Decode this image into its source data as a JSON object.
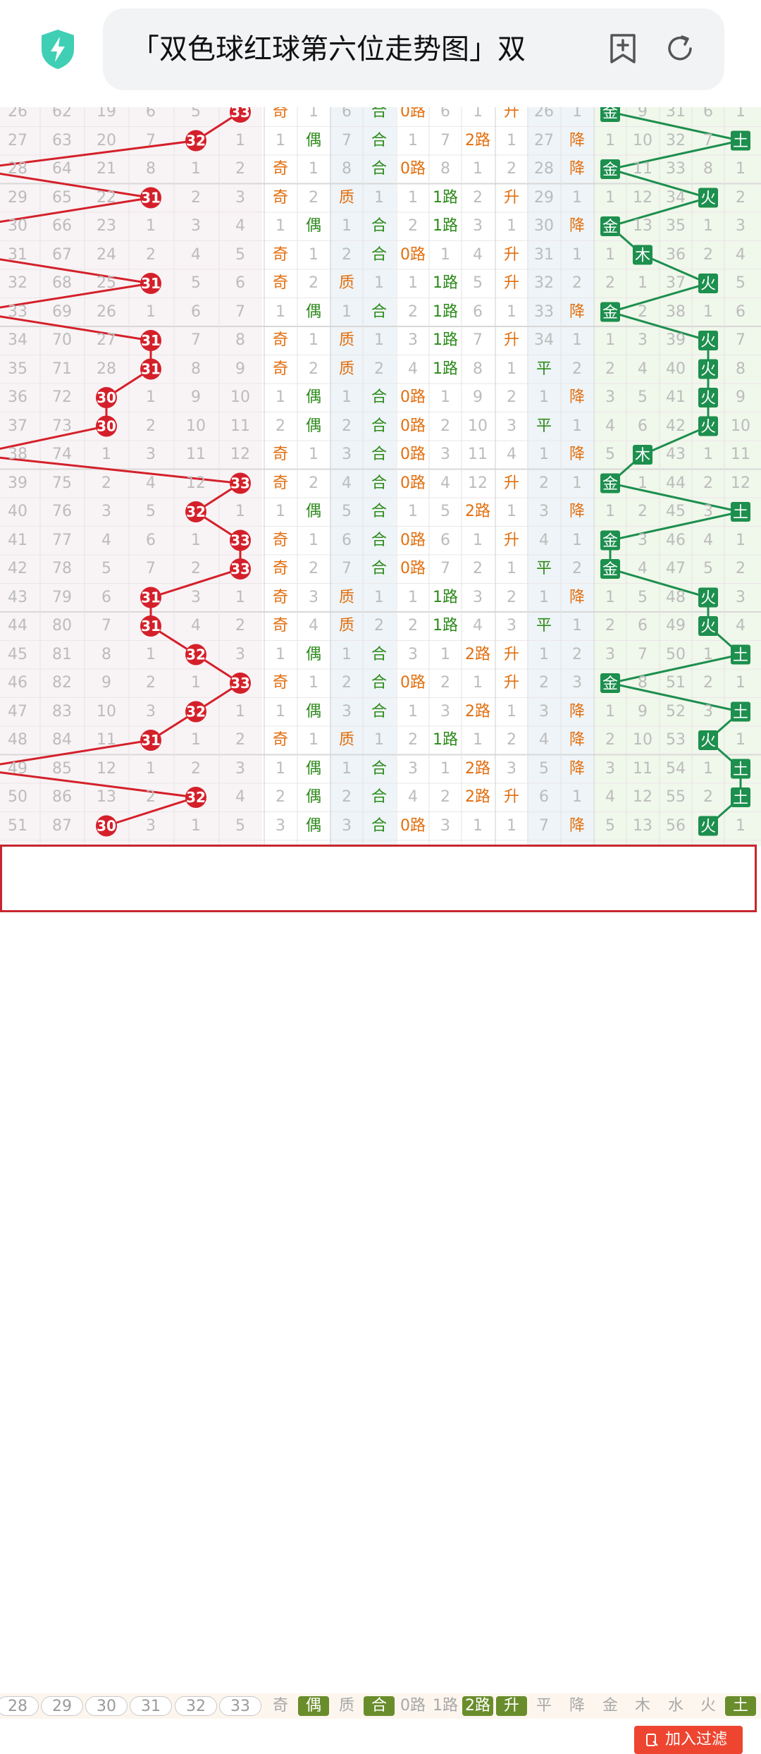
{
  "browser": {
    "url_title": "「双色球红球第六位走势图」双",
    "icons": [
      "shield-bolt-icon",
      "add-bookmark-icon",
      "reload-icon"
    ],
    "shield_color": "#3fcfb4"
  },
  "colors": {
    "red_ball": "#d4202a",
    "red_line": "#d4202a",
    "element_box": "#1d8f4e",
    "element_line": "#1d8f4e",
    "orange_text": "#e26f10",
    "green_text": "#2d8a1b",
    "gray_text": "#bcbcbc",
    "filter_selected": "#6a8d2c",
    "add_button": "#ee4530"
  },
  "table": {
    "number_columns": [
      "28",
      "29",
      "30",
      "31",
      "32",
      "33"
    ],
    "rows": [
      [
        "26",
        "62",
        "19",
        "6",
        "5",
        "33",
        "奇",
        "1",
        "6",
        "合",
        "0路",
        "6",
        "1",
        "升",
        "26",
        "1",
        "金",
        "9",
        "31",
        "6",
        "1"
      ],
      [
        "27",
        "63",
        "20",
        "7",
        "32",
        "1",
        "1",
        "偶",
        "7",
        "合",
        "1",
        "7",
        "2路",
        "1",
        "27",
        "降",
        "1",
        "10",
        "32",
        "7",
        "土"
      ],
      [
        "28",
        "64",
        "21",
        "8",
        "1",
        "2",
        "奇",
        "1",
        "8",
        "合",
        "0路",
        "8",
        "1",
        "2",
        "28",
        "降",
        "金",
        "11",
        "33",
        "8",
        "1"
      ],
      [
        "29",
        "65",
        "22",
        "31",
        "2",
        "3",
        "奇",
        "2",
        "质",
        "1",
        "1",
        "1路",
        "2",
        "升",
        "29",
        "1",
        "1",
        "12",
        "34",
        "火",
        "2"
      ],
      [
        "30",
        "66",
        "23",
        "1",
        "3",
        "4",
        "1",
        "偶",
        "1",
        "合",
        "2",
        "1路",
        "3",
        "1",
        "30",
        "降",
        "金",
        "13",
        "35",
        "1",
        "3"
      ],
      [
        "31",
        "67",
        "24",
        "2",
        "4",
        "5",
        "奇",
        "1",
        "2",
        "合",
        "0路",
        "1",
        "4",
        "升",
        "31",
        "1",
        "1",
        "木",
        "36",
        "2",
        "4"
      ],
      [
        "32",
        "68",
        "25",
        "31",
        "5",
        "6",
        "奇",
        "2",
        "质",
        "1",
        "1",
        "1路",
        "5",
        "升",
        "32",
        "2",
        "2",
        "1",
        "37",
        "火",
        "5"
      ],
      [
        "33",
        "69",
        "26",
        "1",
        "6",
        "7",
        "1",
        "偶",
        "1",
        "合",
        "2",
        "1路",
        "6",
        "1",
        "33",
        "降",
        "金",
        "2",
        "38",
        "1",
        "6"
      ],
      [
        "34",
        "70",
        "27",
        "31",
        "7",
        "8",
        "奇",
        "1",
        "质",
        "1",
        "3",
        "1路",
        "7",
        "升",
        "34",
        "1",
        "1",
        "3",
        "39",
        "火",
        "7"
      ],
      [
        "35",
        "71",
        "28",
        "31",
        "8",
        "9",
        "奇",
        "2",
        "质",
        "2",
        "4",
        "1路",
        "8",
        "1",
        "平",
        "2",
        "2",
        "4",
        "40",
        "火",
        "8"
      ],
      [
        "36",
        "72",
        "30",
        "1",
        "9",
        "10",
        "1",
        "偶",
        "1",
        "合",
        "0路",
        "1",
        "9",
        "2",
        "1",
        "降",
        "3",
        "5",
        "41",
        "火",
        "9"
      ],
      [
        "37",
        "73",
        "30",
        "2",
        "10",
        "11",
        "2",
        "偶",
        "2",
        "合",
        "0路",
        "2",
        "10",
        "3",
        "平",
        "1",
        "4",
        "6",
        "42",
        "火",
        "10"
      ],
      [
        "38",
        "74",
        "1",
        "3",
        "11",
        "12",
        "奇",
        "1",
        "3",
        "合",
        "0路",
        "3",
        "11",
        "4",
        "1",
        "降",
        "5",
        "木",
        "43",
        "1",
        "11"
      ],
      [
        "39",
        "75",
        "2",
        "4",
        "12",
        "33",
        "奇",
        "2",
        "4",
        "合",
        "0路",
        "4",
        "12",
        "升",
        "2",
        "1",
        "金",
        "1",
        "44",
        "2",
        "12"
      ],
      [
        "40",
        "76",
        "3",
        "5",
        "32",
        "1",
        "1",
        "偶",
        "5",
        "合",
        "1",
        "5",
        "2路",
        "1",
        "3",
        "降",
        "1",
        "2",
        "45",
        "3",
        "土"
      ],
      [
        "41",
        "77",
        "4",
        "6",
        "1",
        "33",
        "奇",
        "1",
        "6",
        "合",
        "0路",
        "6",
        "1",
        "升",
        "4",
        "1",
        "金",
        "3",
        "46",
        "4",
        "1"
      ],
      [
        "42",
        "78",
        "5",
        "7",
        "2",
        "33",
        "奇",
        "2",
        "7",
        "合",
        "0路",
        "7",
        "2",
        "1",
        "平",
        "2",
        "金",
        "4",
        "47",
        "5",
        "2"
      ],
      [
        "43",
        "79",
        "6",
        "31",
        "3",
        "1",
        "奇",
        "3",
        "质",
        "1",
        "1",
        "1路",
        "3",
        "2",
        "1",
        "降",
        "1",
        "5",
        "48",
        "火",
        "3"
      ],
      [
        "44",
        "80",
        "7",
        "31",
        "4",
        "2",
        "奇",
        "4",
        "质",
        "2",
        "2",
        "1路",
        "4",
        "3",
        "平",
        "1",
        "2",
        "6",
        "49",
        "火",
        "4"
      ],
      [
        "45",
        "81",
        "8",
        "1",
        "32",
        "3",
        "1",
        "偶",
        "1",
        "合",
        "3",
        "1",
        "2路",
        "升",
        "1",
        "2",
        "3",
        "7",
        "50",
        "1",
        "土"
      ],
      [
        "46",
        "82",
        "9",
        "2",
        "1",
        "33",
        "奇",
        "1",
        "2",
        "合",
        "0路",
        "2",
        "1",
        "升",
        "2",
        "3",
        "金",
        "8",
        "51",
        "2",
        "1"
      ],
      [
        "47",
        "83",
        "10",
        "3",
        "32",
        "1",
        "1",
        "偶",
        "3",
        "合",
        "1",
        "3",
        "2路",
        "1",
        "3",
        "降",
        "1",
        "9",
        "52",
        "3",
        "土"
      ],
      [
        "48",
        "84",
        "11",
        "31",
        "1",
        "2",
        "奇",
        "1",
        "质",
        "1",
        "2",
        "1路",
        "1",
        "2",
        "4",
        "降",
        "2",
        "10",
        "53",
        "火",
        "1"
      ],
      [
        "49",
        "85",
        "12",
        "1",
        "2",
        "3",
        "1",
        "偶",
        "1",
        "合",
        "3",
        "1",
        "2路",
        "3",
        "5",
        "降",
        "3",
        "11",
        "54",
        "1",
        "土"
      ],
      [
        "50",
        "86",
        "13",
        "2",
        "32",
        "4",
        "2",
        "偶",
        "2",
        "合",
        "4",
        "2",
        "2路",
        "升",
        "6",
        "1",
        "4",
        "12",
        "55",
        "2",
        "土"
      ],
      [
        "51",
        "87",
        "30",
        "3",
        "1",
        "5",
        "3",
        "偶",
        "3",
        "合",
        "0路",
        "3",
        "1",
        "1",
        "7",
        "降",
        "5",
        "13",
        "56",
        "火",
        "1"
      ]
    ]
  },
  "filter": {
    "numbers": [
      "28",
      "29",
      "30",
      "31",
      "32",
      "33"
    ],
    "options": [
      {
        "label": "奇",
        "selected": false
      },
      {
        "label": "偶",
        "selected": true
      },
      {
        "label": "质",
        "selected": false
      },
      {
        "label": "合",
        "selected": true
      },
      {
        "label": "0路",
        "selected": false
      },
      {
        "label": "1路",
        "selected": false
      },
      {
        "label": "2路",
        "selected": true
      },
      {
        "label": "升",
        "selected": true
      },
      {
        "label": "平",
        "selected": false
      },
      {
        "label": "降",
        "selected": false
      },
      {
        "label": "金",
        "selected": false
      },
      {
        "label": "木",
        "selected": false
      },
      {
        "label": "水",
        "selected": false
      },
      {
        "label": "火",
        "selected": false
      },
      {
        "label": "土",
        "selected": true
      }
    ],
    "add_button_label": "加入过滤"
  }
}
